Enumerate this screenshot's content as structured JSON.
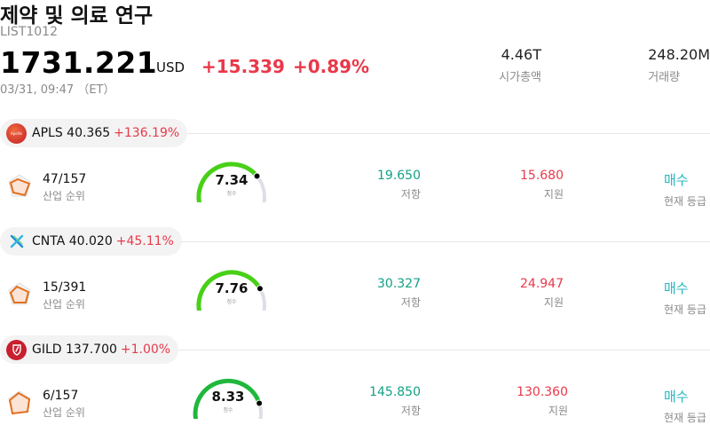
{
  "header": {
    "title": "제약 및 의료 연구",
    "code": "LIST1012",
    "price": "1731.221",
    "currency": "USD",
    "change_abs": "+15.339",
    "change_pct": "+0.89%",
    "timestamp": "03/31, 09:47 （ET）"
  },
  "stats": {
    "market_cap": {
      "value": "4.46T",
      "label": "시가총액"
    },
    "volume": {
      "value": "248.20M",
      "label": "거래량"
    }
  },
  "stocks": [
    {
      "ticker_price": "APLS 40.365",
      "change": "+136.19%",
      "logo_icon": "apellis-logo-icon",
      "logo_text": "Apellis",
      "rank": "47/157",
      "rank_label": "산업 순위",
      "score": "7.34",
      "score_value": 7.34,
      "score_label": "점수",
      "resistance": "19.650",
      "resistance_label": "저항",
      "support": "15.680",
      "support_label": "지원",
      "rating": "매수",
      "rating_label": "현재 등급"
    },
    {
      "ticker_price": "CNTA 40.020",
      "change": "+45.11%",
      "logo_icon": "centessa-logo-icon",
      "rank": "15/391",
      "rank_label": "산업 순위",
      "score": "7.76",
      "score_value": 7.76,
      "score_label": "점수",
      "resistance": "30.327",
      "resistance_label": "저항",
      "support": "24.947",
      "support_label": "지원",
      "rating": "매수",
      "rating_label": "현재 등급"
    },
    {
      "ticker_price": "GILD 137.700",
      "change": "+1.00%",
      "logo_icon": "gilead-logo-icon",
      "rank": "6/157",
      "rank_label": "산업 순위",
      "score": "8.33",
      "score_value": 8.33,
      "score_label": "점수",
      "resistance": "145.850",
      "resistance_label": "저항",
      "support": "130.360",
      "support_label": "지원",
      "rating": "매수",
      "rating_label": "현재 등급"
    }
  ],
  "colors": {
    "up": "#e8394a",
    "resistance": "#13a085",
    "rating": "#28b5c0",
    "gauge_track": "#dedee8"
  }
}
